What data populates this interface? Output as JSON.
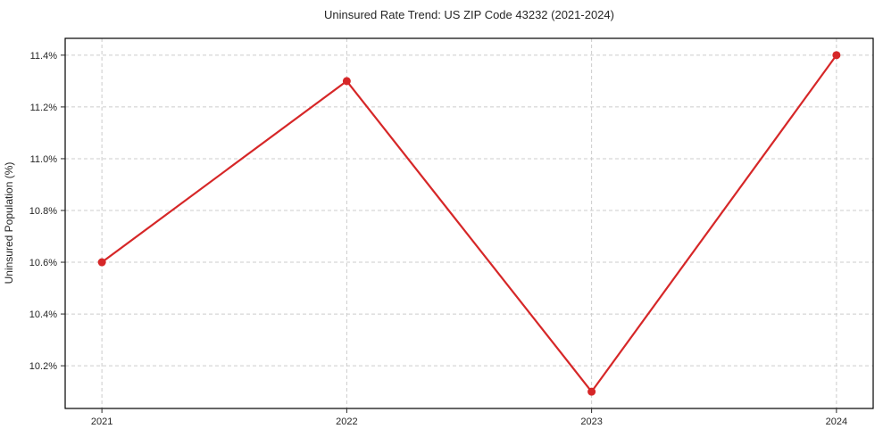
{
  "figure": {
    "background": "#ffffff"
  },
  "chart_data": {
    "type": "line",
    "title": "Uninsured Rate Trend: US ZIP Code 43232 (2021-2024)",
    "xlabel": "",
    "ylabel": "Uninsured Population (%)",
    "x": [
      2021,
      2022,
      2023,
      2024
    ],
    "x_tick_labels": [
      "2021",
      "2022",
      "2023",
      "2024"
    ],
    "series": [
      {
        "name": "uninsured-rate",
        "values": [
          10.6,
          11.3,
          10.1,
          11.4
        ]
      }
    ],
    "y_ticks": [
      10.2,
      10.4,
      10.6,
      10.8,
      11.0,
      11.2,
      11.4
    ],
    "y_tick_suffix": "%",
    "y_tick_decimals": 1,
    "xlim": [
      2020.85,
      2024.15
    ],
    "ylim": [
      10.035,
      11.465
    ],
    "grid": true,
    "grid_style": "dashed",
    "legend": "none",
    "colors": {
      "line": "#d62728",
      "marker": "#d62728",
      "grid": "#cccccc",
      "spine": "#000000",
      "text": "#262626",
      "tick": "#262626"
    }
  }
}
